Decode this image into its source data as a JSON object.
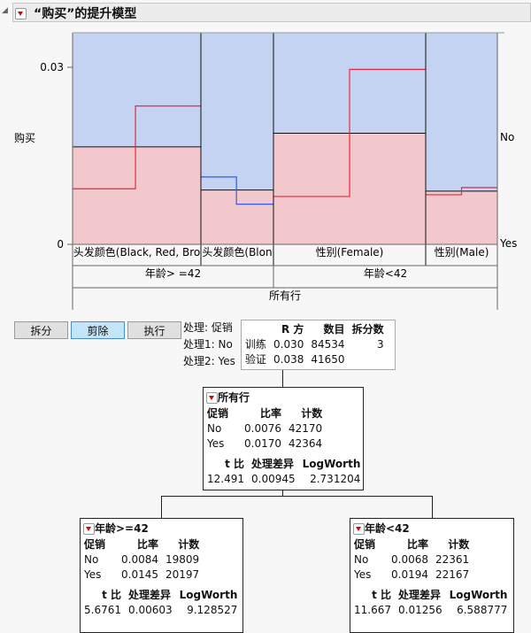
{
  "title": "“购买”的提升模型",
  "chart": {
    "y_axis_label": "购买",
    "y_ticks": [
      "0.03",
      "0"
    ],
    "right_labels": [
      "No",
      "Yes"
    ],
    "ylim": [
      0,
      0.0358
    ],
    "colors": {
      "no": "#c5d3f3",
      "yes": "#f2c8cd",
      "red": "#e8283c",
      "blue": "#2b5ce8"
    },
    "leaves": [
      {
        "label": "头发颜色(Black, Red, Bro",
        "yes_rate": 0.0165,
        "line_color": "red",
        "step_from": 0.0094,
        "step_to": 0.0234,
        "split_frac": 0.49
      },
      {
        "label": "头发颜色(Blon",
        "yes_rate": 0.0092,
        "line_color": "blue",
        "step_from": 0.0114,
        "step_to": 0.0068,
        "split_frac": 0.49
      },
      {
        "label": "性别(Female)",
        "yes_rate": 0.0188,
        "line_color": "red",
        "step_from": 0.0081,
        "step_to": 0.0296,
        "split_frac": 0.5
      },
      {
        "label": "性别(Male)",
        "yes_rate": 0.009,
        "line_color": "red",
        "step_from": 0.0084,
        "step_to": 0.0096,
        "split_frac": 0.5
      }
    ],
    "leaf_weights": [
      145,
      82,
      172,
      81
    ],
    "level2": [
      "年龄> =42",
      "年龄<42"
    ],
    "level1": "所有行"
  },
  "buttons": {
    "split": "拆分",
    "prune": "剪除",
    "go": "执行"
  },
  "treatment": {
    "label": "处理:",
    "value": "促销",
    "t1": "处理1: No",
    "t2": "处理2: Yes"
  },
  "stats": {
    "headers": [
      "",
      "R 方",
      "数目",
      "拆分数"
    ],
    "rows": [
      [
        "训练",
        "0.030",
        "84534",
        "3"
      ],
      [
        "验证",
        "0.038",
        "41650",
        ""
      ]
    ]
  },
  "nodes": {
    "root": {
      "title": "所有行",
      "cols": [
        "促销",
        "比率",
        "计数"
      ],
      "rows": [
        [
          "No",
          "0.0076",
          "42170"
        ],
        [
          "Yes",
          "0.0170",
          "42364"
        ]
      ],
      "tcols": [
        "t 比",
        "处理差异",
        "LogWorth"
      ],
      "tvals": [
        "12.491",
        "0.00945",
        "2.731204"
      ]
    },
    "left": {
      "title": "年龄>=42",
      "cols": [
        "促销",
        "比率",
        "计数"
      ],
      "rows": [
        [
          "No",
          "0.0084",
          "19809"
        ],
        [
          "Yes",
          "0.0145",
          "20197"
        ]
      ],
      "tcols": [
        "t 比",
        "处理差异",
        "LogWorth"
      ],
      "tvals": [
        "5.6761",
        "0.00603",
        "9.128527"
      ]
    },
    "right": {
      "title": "年龄<42",
      "cols": [
        "促销",
        "比率",
        "计数"
      ],
      "rows": [
        [
          "No",
          "0.0068",
          "22361"
        ],
        [
          "Yes",
          "0.0194",
          "22167"
        ]
      ],
      "tcols": [
        "t 比",
        "处理差异",
        "LogWorth"
      ],
      "tvals": [
        "11.667",
        "0.01256",
        "6.588777"
      ]
    }
  }
}
